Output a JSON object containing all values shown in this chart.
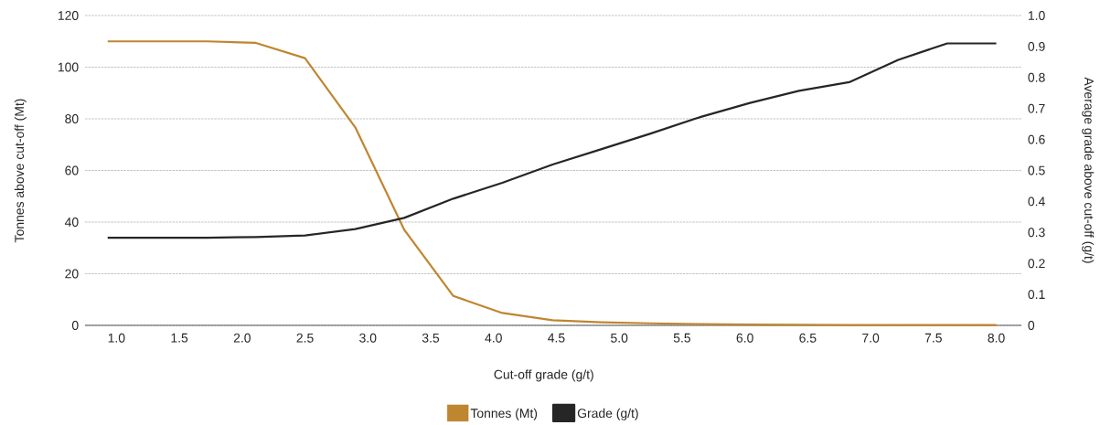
{
  "chart_data": {
    "type": "line",
    "xlabel": "Cut-off grade (g/t)",
    "ylabel": "Tonnes above cut-off (Mt)",
    "y2label": "Average grade above cut-off (g/t)",
    "x": [
      0.93,
      1.32,
      1.72,
      2.11,
      2.5,
      2.9,
      3.29,
      3.68,
      4.07,
      4.47,
      4.86,
      5.25,
      5.65,
      6.04,
      6.43,
      6.83,
      7.22,
      7.61,
      8.0
    ],
    "series": [
      {
        "name": "Tonnes (Mt)",
        "color": "#bf8630",
        "values": [
          110,
          110,
          110,
          109.4,
          103.5,
          76.7,
          37.0,
          11.4,
          4.8,
          2.0,
          1.2,
          0.8,
          0.5,
          0.3,
          0.2,
          0.1,
          0.1,
          0.1,
          0.1
        ]
      },
      {
        "name": "Grade (g/t)",
        "color": "#262626",
        "axis": "y2",
        "values": [
          0.283,
          0.283,
          0.283,
          0.285,
          0.29,
          0.311,
          0.347,
          0.409,
          0.46,
          0.519,
          0.569,
          0.619,
          0.673,
          0.718,
          0.757,
          0.785,
          0.857,
          0.91,
          0.91
        ]
      }
    ],
    "xlim": [
      0.75,
      8.2
    ],
    "xticks": [
      {
        "value": 1,
        "label": "1.0"
      },
      {
        "value": 1.5,
        "label": "1.5"
      },
      {
        "value": 2,
        "label": "2.0"
      },
      {
        "value": 2.5,
        "label": "2.5"
      },
      {
        "value": 3,
        "label": "3.0"
      },
      {
        "value": 3.5,
        "label": "3.5"
      },
      {
        "value": 4,
        "label": "4.0"
      },
      {
        "value": 4.5,
        "label": "4.5"
      },
      {
        "value": 5,
        "label": "5.0"
      },
      {
        "value": 5.5,
        "label": "5.5"
      },
      {
        "value": 6,
        "label": "6.0"
      },
      {
        "value": 6.5,
        "label": "6.5"
      },
      {
        "value": 7,
        "label": "7.0"
      },
      {
        "value": 7.5,
        "label": "7.5"
      },
      {
        "value": 8,
        "label": "8.0"
      }
    ],
    "ylim": [
      0,
      120
    ],
    "yticks": [
      0,
      20,
      40,
      60,
      80,
      100,
      120
    ],
    "y2lim": [
      0,
      1
    ],
    "y2ticks": [
      0,
      0.1,
      0.2,
      0.3,
      0.4,
      0.5,
      0.6,
      0.7,
      0.8,
      0.9,
      {
        "value": 1,
        "label": "1.0"
      }
    ],
    "grid": "y",
    "legend": "bottom"
  }
}
